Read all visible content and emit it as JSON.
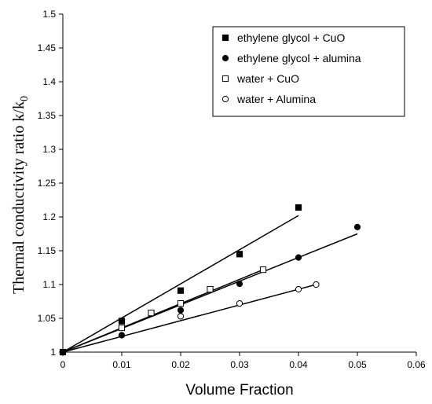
{
  "chart_data": {
    "type": "scatter",
    "title": "",
    "xlabel": "Volume Fraction",
    "ylabel": "Thermal conductivity ratio k/k",
    "ylabel_sub": "0",
    "xlim": [
      0,
      0.06
    ],
    "ylim": [
      1,
      1.5
    ],
    "xticks": [
      {
        "v": 0,
        "label": "0"
      },
      {
        "v": 0.01,
        "label": "0.01"
      },
      {
        "v": 0.02,
        "label": "0.02"
      },
      {
        "v": 0.03,
        "label": "0.03"
      },
      {
        "v": 0.04,
        "label": "0.04"
      },
      {
        "v": 0.05,
        "label": "0.05"
      },
      {
        "v": 0.06,
        "label": "0.06"
      }
    ],
    "yticks": [
      {
        "v": 1,
        "label": "1"
      },
      {
        "v": 1.05,
        "label": "1.05"
      },
      {
        "v": 1.1,
        "label": "1.1"
      },
      {
        "v": 1.15,
        "label": "1.15"
      },
      {
        "v": 1.2,
        "label": "1.2"
      },
      {
        "v": 1.25,
        "label": "1.25"
      },
      {
        "v": 1.3,
        "label": "1.3"
      },
      {
        "v": 1.35,
        "label": "1.35"
      },
      {
        "v": 1.4,
        "label": "1.4"
      },
      {
        "v": 1.45,
        "label": "1.45"
      },
      {
        "v": 1.5,
        "label": "1.5"
      }
    ],
    "grid": false,
    "legend": "top-right",
    "series": [
      {
        "name": "ethylene glycol + CuO",
        "marker": "square-filled",
        "points": [
          [
            0,
            1.0
          ],
          [
            0.01,
            1.046
          ],
          [
            0.02,
            1.091
          ],
          [
            0.03,
            1.145
          ],
          [
            0.04,
            1.214
          ]
        ],
        "fit": [
          [
            0,
            1.0
          ],
          [
            0.04,
            1.202
          ]
        ]
      },
      {
        "name": "ethylene glycol + alumina",
        "marker": "circle-filled",
        "points": [
          [
            0,
            1.0
          ],
          [
            0.01,
            1.025
          ],
          [
            0.02,
            1.062
          ],
          [
            0.03,
            1.101
          ],
          [
            0.04,
            1.14
          ],
          [
            0.05,
            1.185
          ]
        ],
        "fit": [
          [
            0,
            1.0
          ],
          [
            0.05,
            1.175
          ]
        ]
      },
      {
        "name": "water + CuO",
        "marker": "square-open",
        "points": [
          [
            0.01,
            1.036
          ],
          [
            0.015,
            1.058
          ],
          [
            0.02,
            1.072
          ],
          [
            0.025,
            1.093
          ],
          [
            0.034,
            1.122
          ]
        ],
        "fit": [
          [
            0,
            1.0
          ],
          [
            0.034,
            1.122
          ]
        ]
      },
      {
        "name": "water + Alumina",
        "marker": "circle-open",
        "points": [
          [
            0.02,
            1.053
          ],
          [
            0.03,
            1.072
          ],
          [
            0.04,
            1.093
          ],
          [
            0.043,
            1.1
          ]
        ],
        "fit": [
          [
            0,
            1.0
          ],
          [
            0.043,
            1.1
          ]
        ]
      }
    ],
    "colors": {
      "axis": "#000000",
      "marker": "#000000",
      "line": "#000000",
      "background": "#ffffff"
    }
  }
}
